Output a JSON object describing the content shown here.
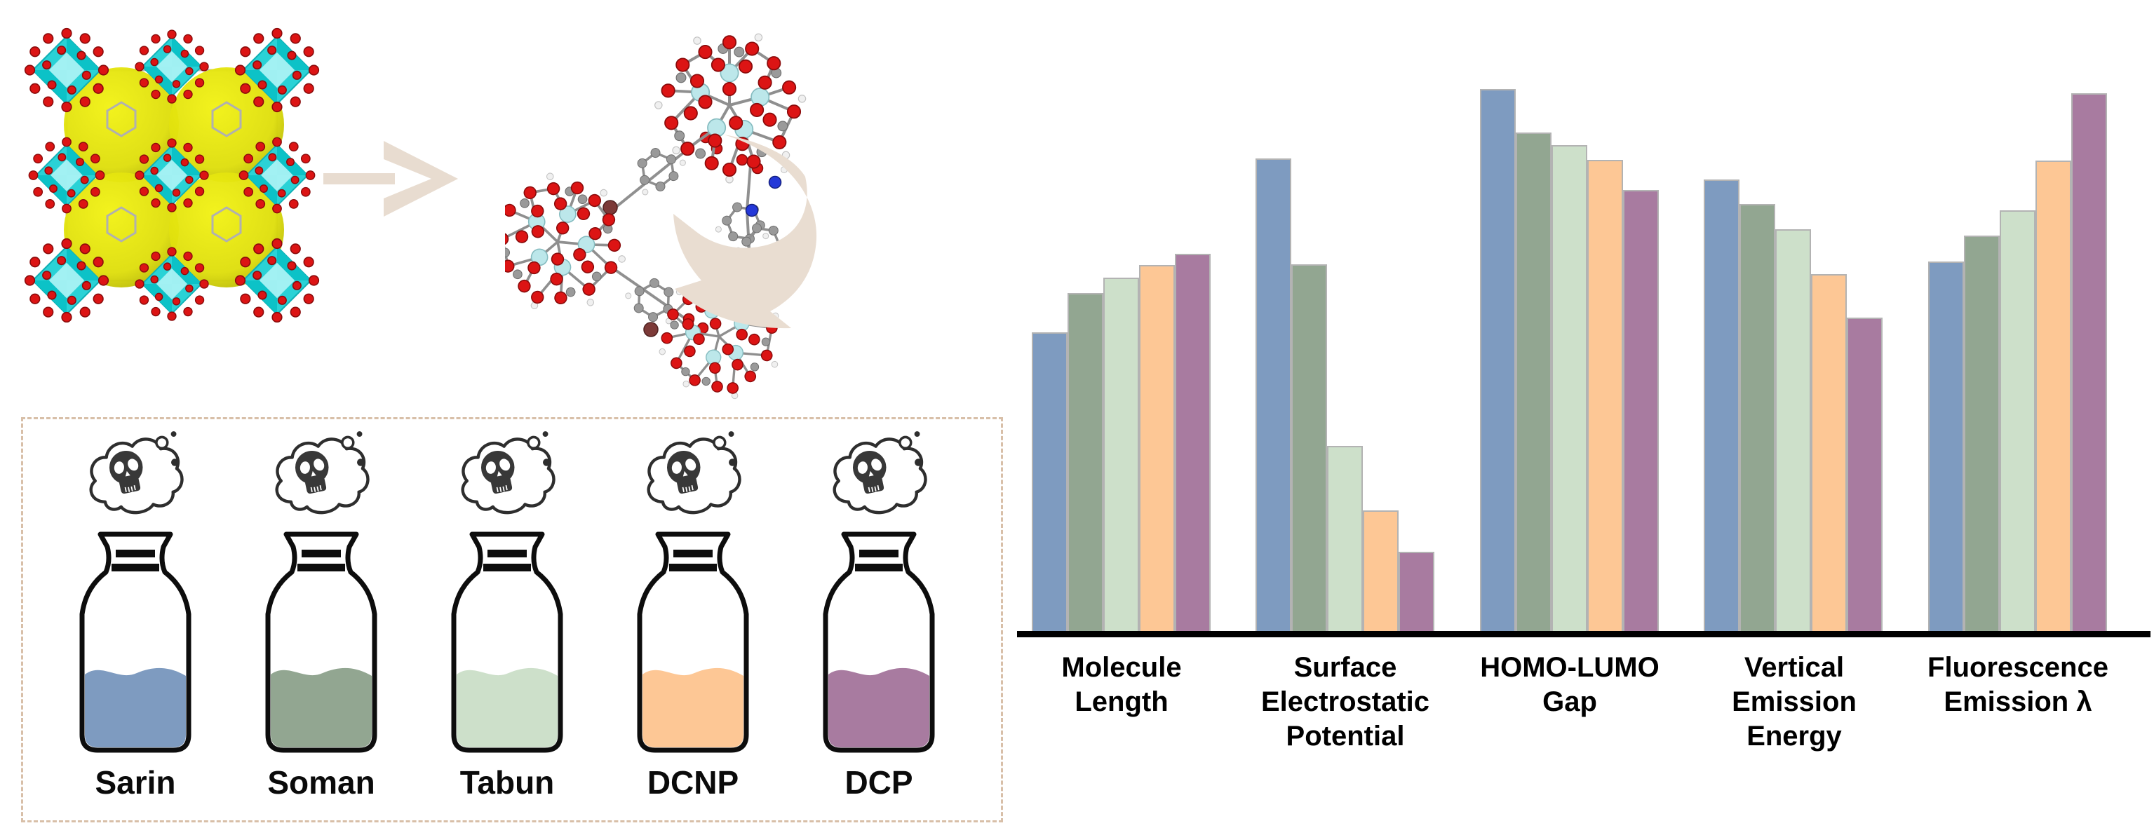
{
  "palette": {
    "sarin_blue": "#7e9bc0",
    "soman_green": "#92a691",
    "tabun_lightgreen": "#cde0ca",
    "dcnp_orange": "#fdc795",
    "dcp_purple": "#a87ba0",
    "arrow_beige": "#e8dcd0",
    "dashed_border_tan": "#d8bfa8",
    "bar_border_gray": "#b3b3b3",
    "axis_black": "#000000",
    "mof_cyan": "#2ad2d6",
    "mof_yellow_sphere": "#e8e80e",
    "atom_red": "#dc1414"
  },
  "icons": {
    "skull_icon": "skull-in-toxic-cloud",
    "transform_arrow_icon": "right-chevron-block-arrow",
    "curved_arrow_icon": "curved-swoosh-arrow-down-left"
  },
  "illustrations": {
    "mof": "MOF crystal structure: 3x3 cyan metal-oxo clusters with red oxygen atoms and four yellow pore spheres",
    "cluster": "ball-and-stick fragment: three Zr-oxo clusters linked by organic ligands (gray C, white H, red O, blue N, brown Br)"
  },
  "agents_panel": {
    "bottles": [
      {
        "label": "Sarin",
        "color": "#7e9bc0"
      },
      {
        "label": "Soman",
        "color": "#92a691"
      },
      {
        "label": "Tabun",
        "color": "#cde0ca"
      },
      {
        "label": "DCNP",
        "color": "#fdc795"
      },
      {
        "label": "DCP",
        "color": "#a87ba0"
      }
    ]
  },
  "chart_data": {
    "type": "bar",
    "title": "",
    "xlabel": "",
    "ylabel": "",
    "unit": "relative bar height (no numeric axis shown)",
    "legend": "none shown; bar colors match bottle colors (Sarin, Soman, Tabun, DCNP, DCP)",
    "grid": false,
    "ylim": [
      0,
      100
    ],
    "categories": [
      "Molecule Length",
      "Surface Electrostatic Potential",
      "HOMO-LUMO Gap",
      "Vertical Emission Energy",
      "Fluorescence Emission λ"
    ],
    "category_lines": [
      [
        "Molecule",
        "Length"
      ],
      [
        "Surface",
        "Electrostatic",
        "Potential"
      ],
      [
        "HOMO-LUMO",
        "Gap"
      ],
      [
        "Vertical",
        "Emission",
        "Energy"
      ],
      [
        "Fluorescence",
        "Emission λ"
      ]
    ],
    "series": [
      {
        "name": "Sarin",
        "color": "#7e9bc0",
        "values": [
          55.1,
          87.2,
          100.0,
          83.3,
          68.2
        ]
      },
      {
        "name": "Soman",
        "color": "#92a691",
        "values": [
          62.4,
          67.7,
          92.0,
          78.8,
          73.0
        ]
      },
      {
        "name": "Tabun",
        "color": "#cde0ca",
        "values": [
          65.2,
          34.2,
          89.7,
          74.1,
          77.6
        ]
      },
      {
        "name": "DCNP",
        "color": "#fdc795",
        "values": [
          67.5,
          22.3,
          86.9,
          65.8,
          86.8
        ]
      },
      {
        "name": "DCP",
        "color": "#a87ba0",
        "values": [
          69.6,
          14.6,
          81.4,
          57.8,
          99.2
        ]
      }
    ]
  }
}
